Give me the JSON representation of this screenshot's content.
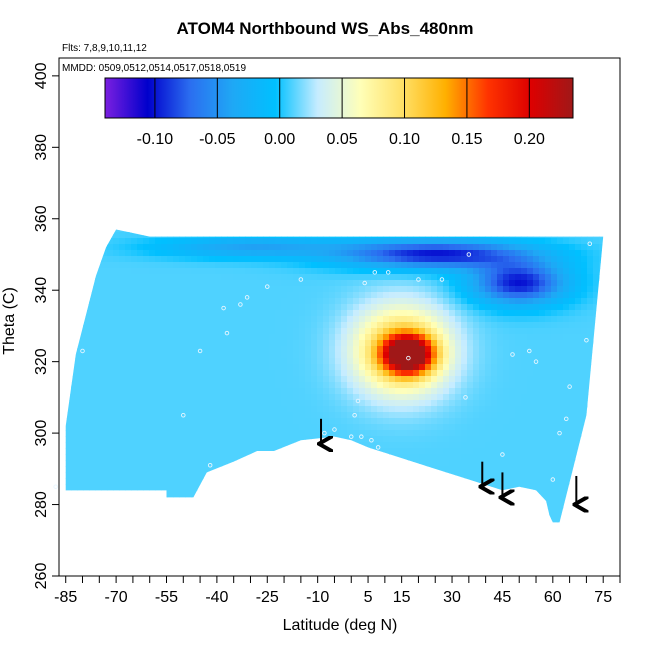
{
  "chart_data": {
    "type": "heatmap",
    "title": "ATOM4 Northbound WS_Abs_480nm",
    "subtitle_flights": "Flts: 7,8,9,10,11,12",
    "subtitle_dates": "MMDD: 0509,0512,0514,0517,0518,0519",
    "xlabel": "Latitude (deg N)",
    "ylabel": "Theta (C)",
    "xlim": [
      -87,
      80
    ],
    "ylim": [
      260,
      405
    ],
    "x_ticks": [
      -85,
      -70,
      -55,
      -40,
      -25,
      -10,
      5,
      15,
      30,
      45,
      60,
      75
    ],
    "y_ticks": [
      260,
      280,
      300,
      320,
      340,
      360,
      380,
      400
    ],
    "colorbar": {
      "range": [
        -0.14,
        0.235
      ],
      "ticks": [
        -0.1,
        -0.05,
        0.0,
        0.05,
        0.1,
        0.15,
        0.2
      ],
      "tick_labels": [
        "-0.10",
        "-0.05",
        "0.00",
        "0.05",
        "0.10",
        "0.15",
        "0.20"
      ],
      "colors": [
        "#7b1fe0",
        "#0000cc",
        "#2b6ef0",
        "#1fa8f5",
        "#00c0ff",
        "#c6ecff",
        "#ffffb8",
        "#ffe066",
        "#ffb000",
        "#ff3300",
        "#dd0000",
        "#a01818"
      ]
    },
    "field_upper_boundary": [
      [
        -85,
        302
      ],
      [
        -82,
        322
      ],
      [
        -79,
        333
      ],
      [
        -76,
        344
      ],
      [
        -73,
        352
      ],
      [
        -70,
        357
      ],
      [
        -60,
        355
      ],
      [
        -40,
        355
      ],
      [
        -20,
        355
      ],
      [
        0,
        355
      ],
      [
        20,
        355
      ],
      [
        40,
        355
      ],
      [
        60,
        355
      ],
      [
        75,
        355
      ]
    ],
    "field_lower_boundary": [
      [
        -85,
        284
      ],
      [
        -55,
        284
      ],
      [
        -55,
        282
      ],
      [
        -47,
        282
      ],
      [
        -43,
        289
      ],
      [
        -35,
        292
      ],
      [
        -28,
        295
      ],
      [
        -23,
        295
      ],
      [
        -15,
        298
      ],
      [
        -5,
        299
      ],
      [
        0,
        298
      ],
      [
        5,
        296
      ],
      [
        15,
        293
      ],
      [
        25,
        290
      ],
      [
        35,
        287
      ],
      [
        45,
        284
      ],
      [
        50,
        285
      ],
      [
        55,
        284
      ],
      [
        58,
        281
      ],
      [
        59,
        277
      ],
      [
        60,
        275
      ],
      [
        62,
        275
      ],
      [
        66,
        290
      ],
      [
        70,
        305
      ],
      [
        75,
        355
      ]
    ],
    "color_field_features": [
      {
        "center": [
          17,
          322
        ],
        "value": 0.22,
        "radius": [
          7,
          5
        ]
      },
      {
        "center": [
          15,
          323
        ],
        "value": 0.13,
        "radius": [
          14,
          12
        ]
      },
      {
        "center": [
          25,
          350
        ],
        "value": -0.1,
        "radius": [
          28,
          4
        ]
      },
      {
        "center": [
          50,
          342
        ],
        "value": -0.1,
        "radius": [
          14,
          6
        ]
      },
      {
        "center": [
          -30,
          352
        ],
        "value": -0.04,
        "radius": [
          28,
          3
        ]
      }
    ],
    "flight_points": [
      [
        -80,
        323
      ],
      [
        -45,
        323
      ],
      [
        -37,
        328
      ],
      [
        -38,
        335
      ],
      [
        -33,
        336
      ],
      [
        -31,
        338
      ],
      [
        -25,
        341
      ],
      [
        -15,
        343
      ],
      [
        -50,
        305
      ],
      [
        -42,
        291
      ],
      [
        -8,
        300
      ],
      [
        -5,
        301
      ],
      [
        0,
        299
      ],
      [
        3,
        299
      ],
      [
        1,
        305
      ],
      [
        2,
        309
      ],
      [
        6,
        298
      ],
      [
        8,
        296
      ],
      [
        4,
        342
      ],
      [
        7,
        345
      ],
      [
        11,
        345
      ],
      [
        17,
        321
      ],
      [
        20,
        343
      ],
      [
        27,
        343
      ],
      [
        34,
        310
      ],
      [
        48,
        322
      ],
      [
        53,
        323
      ],
      [
        35,
        350
      ],
      [
        45,
        294
      ],
      [
        55,
        320
      ],
      [
        62,
        300
      ],
      [
        64,
        304
      ],
      [
        65,
        313
      ],
      [
        70,
        326
      ],
      [
        71,
        353
      ],
      [
        60,
        287
      ],
      [
        -88,
        285
      ]
    ],
    "arrows": [
      {
        "x": -9,
        "y_top": 304,
        "y_tip": 297
      },
      {
        "x": 39,
        "y_top": 292,
        "y_tip": 285
      },
      {
        "x": 45,
        "y_top": 289,
        "y_tip": 282
      },
      {
        "x": 67,
        "y_top": 288,
        "y_tip": 280
      }
    ]
  }
}
